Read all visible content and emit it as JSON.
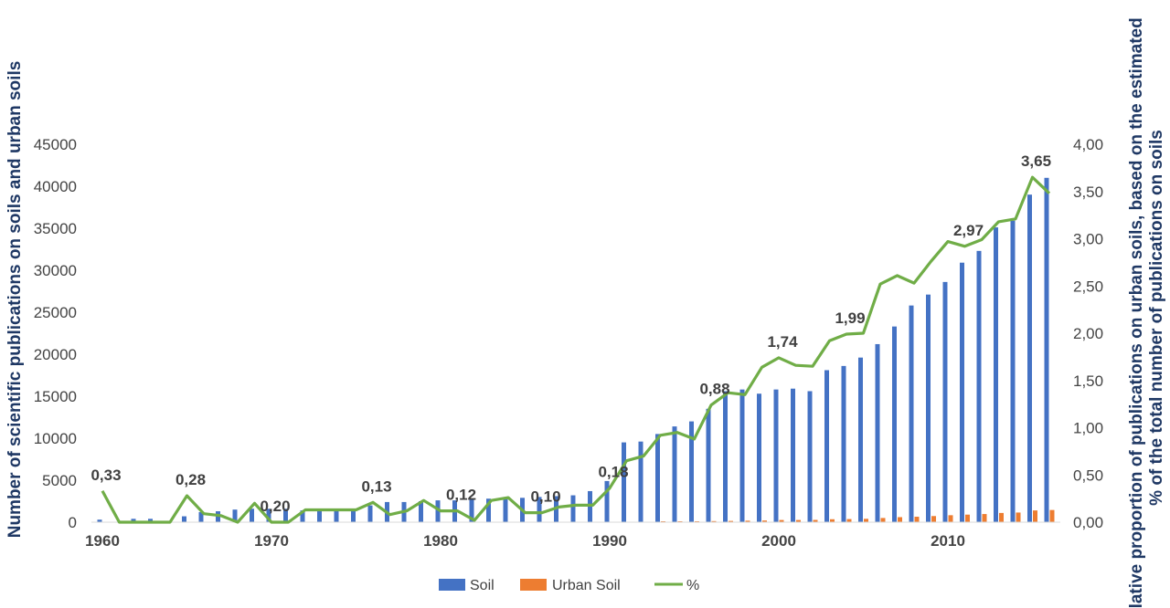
{
  "chart_data": {
    "type": "bar",
    "title": "",
    "xlabel": "",
    "ylabel": "Number of scientific publications on soils and urban soils",
    "ylabel_right_line1": "Relative proportion of publications on urban soils, based on the estimated",
    "ylabel_right_line2": "% of the total number of publications on soils",
    "x": [
      1960,
      1961,
      1962,
      1963,
      1964,
      1965,
      1966,
      1967,
      1968,
      1969,
      1970,
      1971,
      1972,
      1973,
      1974,
      1975,
      1976,
      1977,
      1978,
      1979,
      1980,
      1981,
      1982,
      1983,
      1984,
      1985,
      1986,
      1987,
      1988,
      1989,
      1990,
      1991,
      1992,
      1993,
      1994,
      1995,
      1996,
      1997,
      1998,
      1999,
      2000,
      2001,
      2002,
      2003,
      2004,
      2005,
      2006,
      2007,
      2008,
      2009,
      2010,
      2011,
      2012,
      2013,
      2014,
      2015,
      2016
    ],
    "x_ticks": [
      "1960",
      "1970",
      "1980",
      "1990",
      "2000",
      "2010"
    ],
    "ylim_left": [
      0,
      45000
    ],
    "yticks_left": [
      "0",
      "5000",
      "10000",
      "15000",
      "20000",
      "25000",
      "30000",
      "35000",
      "40000",
      "45000"
    ],
    "ylim_right": [
      0,
      4.0
    ],
    "yticks_right": [
      "0,00",
      "0,50",
      "1,00",
      "1,50",
      "2,00",
      "2,50",
      "3,00",
      "3,50",
      "4,00"
    ],
    "grid": false,
    "legend_position": "bottom",
    "series": [
      {
        "name": "Soil",
        "type": "bar",
        "axis": "left",
        "color": "#4472c4",
        "values": [
          300,
          0,
          400,
          400,
          0,
          700,
          1200,
          1300,
          1500,
          1600,
          1600,
          1600,
          1400,
          1400,
          1400,
          1400,
          2000,
          2400,
          2400,
          2500,
          2600,
          2600,
          2700,
          2800,
          2800,
          2900,
          3000,
          3100,
          3200,
          3700,
          4900,
          9500,
          9600,
          10500,
          11400,
          12000,
          13500,
          15600,
          15800,
          15300,
          15800,
          15900,
          15600,
          18100,
          18600,
          19600,
          21200,
          23300,
          25800,
          27100,
          28600,
          30900,
          32300,
          35100,
          35900,
          39000,
          41000
        ]
      },
      {
        "name": "Urban Soil",
        "type": "bar",
        "axis": "left",
        "color": "#ed7d31",
        "values": [
          0,
          0,
          0,
          0,
          0,
          0,
          0,
          0,
          0,
          0,
          0,
          0,
          0,
          0,
          0,
          0,
          0,
          0,
          0,
          0,
          0,
          0,
          0,
          0,
          0,
          0,
          0,
          0,
          0,
          0,
          0,
          0,
          0,
          50,
          80,
          100,
          130,
          150,
          180,
          200,
          260,
          260,
          270,
          350,
          370,
          400,
          500,
          600,
          650,
          730,
          830,
          900,
          970,
          1100,
          1150,
          1400,
          1450
        ]
      },
      {
        "name": "%",
        "type": "line",
        "axis": "right",
        "color": "#70ad47",
        "values": [
          0.33,
          0.0,
          0.0,
          0.0,
          0.0,
          0.28,
          0.09,
          0.07,
          0.0,
          0.2,
          0.0,
          0.0,
          0.13,
          0.13,
          0.13,
          0.13,
          0.21,
          0.08,
          0.12,
          0.23,
          0.12,
          0.12,
          0.02,
          0.23,
          0.26,
          0.1,
          0.1,
          0.16,
          0.18,
          0.18,
          0.36,
          0.65,
          0.7,
          0.92,
          0.95,
          0.88,
          1.24,
          1.37,
          1.35,
          1.64,
          1.74,
          1.66,
          1.65,
          1.92,
          1.99,
          2.0,
          2.52,
          2.61,
          2.53,
          2.76,
          2.97,
          2.92,
          2.99,
          3.18,
          3.21,
          3.65,
          3.48
        ]
      }
    ],
    "annotations": [
      {
        "x": 1960,
        "label": "0,33"
      },
      {
        "x": 1965,
        "label": "0,28"
      },
      {
        "x": 1970,
        "label": "0,20"
      },
      {
        "x": 1976,
        "label": "0,13"
      },
      {
        "x": 1981,
        "label": "0,12"
      },
      {
        "x": 1986,
        "label": "0,10"
      },
      {
        "x": 1990,
        "label": "0,18"
      },
      {
        "x": 1996,
        "label": "0,88"
      },
      {
        "x": 2000,
        "label": "1,74"
      },
      {
        "x": 2004,
        "label": "1,99"
      },
      {
        "x": 2011,
        "label": "2,97"
      },
      {
        "x": 2015,
        "label": "3,65"
      }
    ]
  }
}
